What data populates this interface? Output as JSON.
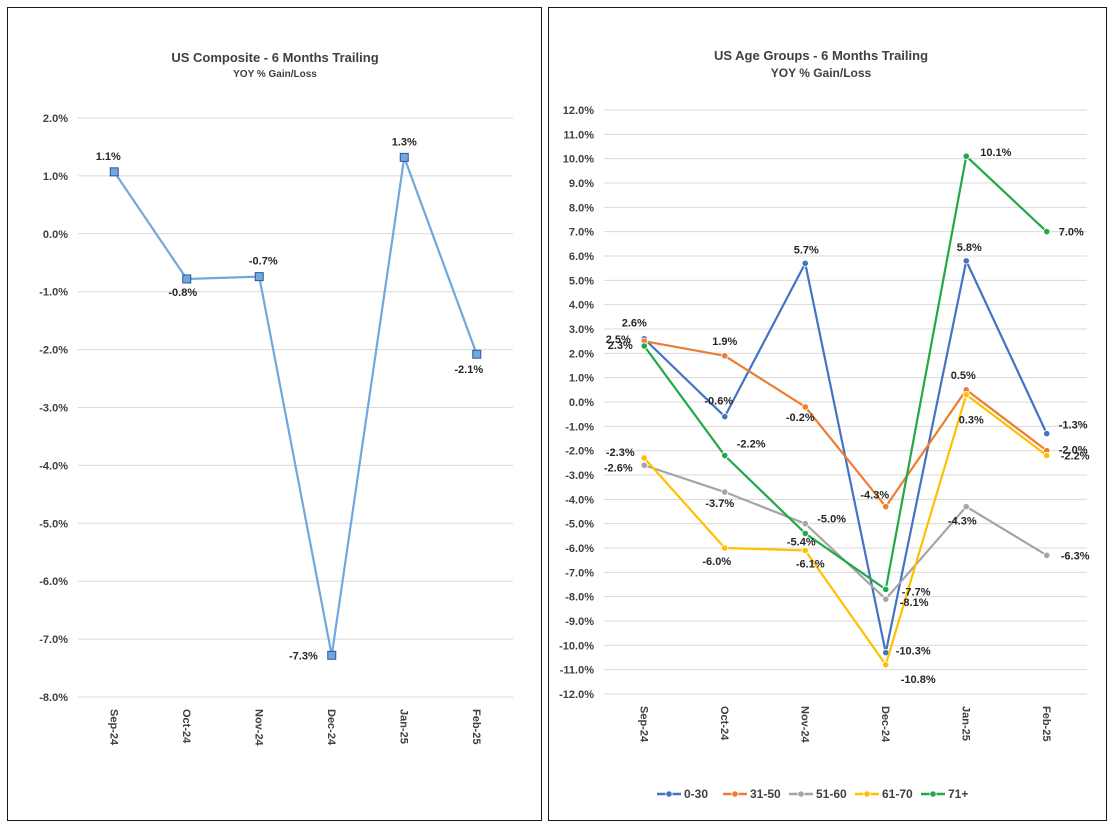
{
  "chart_data": [
    {
      "type": "line",
      "title": "US Composite - 6 Months Trailing",
      "subtitle": "YOY % Gain/Loss",
      "categories": [
        "Sep-24",
        "Oct-24",
        "Nov-24",
        "Dec-24",
        "Jan-25",
        "Feb-25"
      ],
      "ylim": [
        -8.0,
        2.0
      ],
      "ytick_step": 1.0,
      "y_tick_labels": [
        "2.0%",
        "1.0%",
        "0.0%",
        "-1.0%",
        "-2.0%",
        "-3.0%",
        "-4.0%",
        "-5.0%",
        "-6.0%",
        "-7.0%",
        "-8.0%"
      ],
      "legend": "none",
      "series": [
        {
          "color": "#6fa8dc",
          "marker": "square",
          "values": [
            1.07,
            -0.78,
            -0.74,
            -7.28,
            1.32,
            -2.08
          ],
          "labels": [
            "1.1%",
            "-0.8%",
            "-0.7%",
            "-7.3%",
            "1.3%",
            "-2.1%"
          ]
        }
      ]
    },
    {
      "type": "line",
      "title": "US Age Groups - 6 Months Trailing",
      "subtitle": "YOY % Gain/Loss",
      "categories": [
        "Sep-24",
        "Oct-24",
        "Nov-24",
        "Dec-24",
        "Jan-25",
        "Feb-25"
      ],
      "ylim": [
        -12.0,
        12.0
      ],
      "ytick_step": 1.0,
      "y_tick_labels": [
        "12.0%",
        "11.0%",
        "10.0%",
        "9.0%",
        "8.0%",
        "7.0%",
        "6.0%",
        "5.0%",
        "4.0%",
        "3.0%",
        "2.0%",
        "1.0%",
        "0.0%",
        "-1.0%",
        "-2.0%",
        "-3.0%",
        "-4.0%",
        "-5.0%",
        "-6.0%",
        "-7.0%",
        "-8.0%",
        "-9.0%",
        "-10.0%",
        "-11.0%",
        "-12.0%"
      ],
      "legend": "bottom",
      "series": [
        {
          "name": "0-30",
          "color": "#4472c4",
          "values": [
            2.6,
            -0.6,
            5.7,
            -10.3,
            5.8,
            -1.3
          ],
          "labels": [
            "2.6%",
            "-0.6%",
            "5.7%",
            "-10.3%",
            "5.8%",
            "-1.3%"
          ]
        },
        {
          "name": "31-50",
          "color": "#ed7d31",
          "values": [
            2.5,
            1.9,
            -0.2,
            -4.3,
            0.5,
            -2.0
          ],
          "labels": [
            "2.5%",
            "1.9%",
            "-0.2%",
            "-4.3%",
            "0.5%",
            "-2.0%"
          ]
        },
        {
          "name": "51-60",
          "color": "#a5a5a5",
          "values": [
            -2.6,
            -3.7,
            -5.0,
            -8.1,
            -4.3,
            -6.3
          ],
          "labels": [
            "-2.6%",
            "-3.7%",
            "-5.0%",
            "-8.1%",
            "-4.3%",
            "-6.3%"
          ]
        },
        {
          "name": "61-70",
          "color": "#ffc000",
          "values": [
            -2.3,
            -6.0,
            -6.1,
            -10.8,
            0.3,
            -2.2
          ],
          "labels": [
            "-2.3%",
            "-6.0%",
            "-6.1%",
            "-10.8%",
            "0.3%",
            "-2.2%"
          ]
        },
        {
          "name": "71+",
          "color": "#22a846",
          "values": [
            2.3,
            -2.2,
            -5.4,
            -7.7,
            10.1,
            7.0
          ],
          "labels": [
            "2.3%",
            "-2.2%",
            "-5.4%",
            "-7.7%",
            "10.1%",
            "7.0%"
          ]
        }
      ]
    }
  ]
}
